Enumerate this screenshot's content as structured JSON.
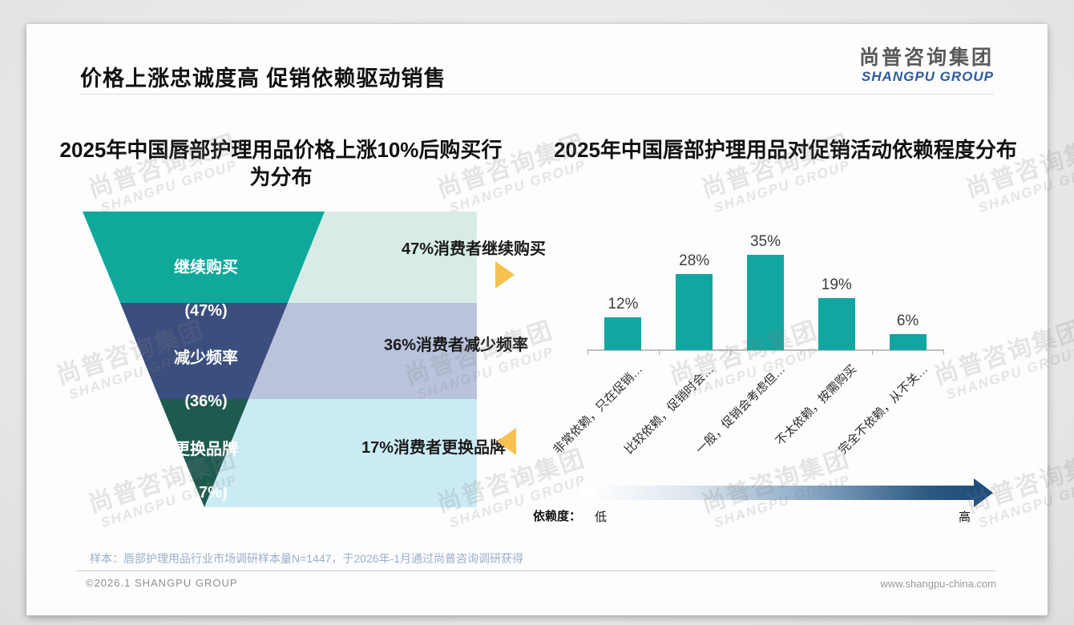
{
  "slide": {
    "title": "价格上涨忠诚度高 促销依赖驱动销售",
    "logo_cn": "尚普咨询集团",
    "logo_en": "SHANGPU GROUP",
    "watermark_cn": "尚普咨询集团",
    "watermark_en": "SHANGPU GROUP",
    "footnote": "样本：唇部护理用品行业市场调研样本量N=1447，于2026年-1月通过尚普咨询调研获得",
    "copyright": "©2026.1 SHANGPU GROUP",
    "website": "www.shangpu-china.com"
  },
  "chart_data": [
    {
      "type": "funnel",
      "title": "2025年中国唇部护理用品价格上涨10%后购买行为分布",
      "unit": "%",
      "segments": [
        {
          "label": "继续购买",
          "value": 47,
          "value_label": "(47%)",
          "note": "47%消费者继续购买",
          "color": "#0fa99b",
          "panel_color": "#d8ece7"
        },
        {
          "label": "减少频率",
          "value": 36,
          "value_label": "(36%)",
          "note": "36%消费者减少频率",
          "color": "#3b4e7e",
          "panel_color": "#b9c3db"
        },
        {
          "label": "更换品牌",
          "value": 17,
          "value_label": "(17%)",
          "note": "17%消费者更换品牌",
          "color": "#1e5b4f",
          "panel_color": "#cbebf4"
        }
      ]
    },
    {
      "type": "bar",
      "title": "2025年中国唇部护理用品对促销活动依赖程度分布",
      "categories": [
        "非常依赖，只在促销…",
        "比较依赖，促销时会…",
        "一般，促销会考虑但…",
        "不太依赖，按需购买",
        "完全不依赖，从不关…"
      ],
      "values": [
        12,
        28,
        35,
        19,
        6
      ],
      "unit": "%",
      "ylim": [
        0,
        40
      ],
      "grid": false,
      "bar_color": "#12a6a1",
      "scale": {
        "label": "依赖度：",
        "low": "低",
        "high": "高"
      }
    }
  ],
  "colors": {
    "marker_yellow": "#f7c14e",
    "scale_dark_blue": "#1f4e7c",
    "logo_blue": "#2e5b9e",
    "footnote_blue": "#9aaec8"
  }
}
